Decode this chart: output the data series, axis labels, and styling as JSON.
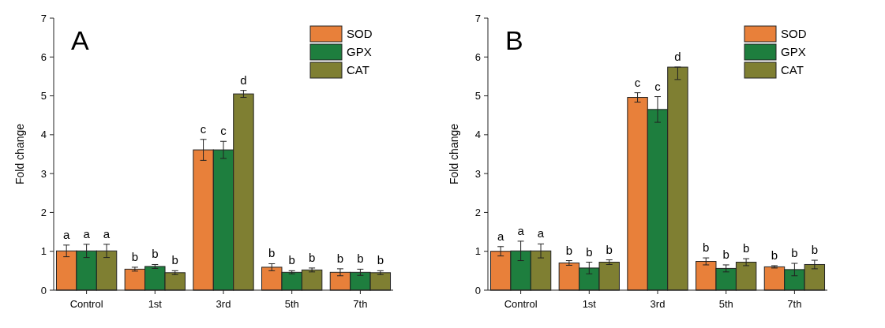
{
  "chart_data": [
    {
      "type": "bar",
      "title": "A",
      "ylabel": "Fold change",
      "categories": [
        "Control",
        "1st",
        "3rd",
        "5th",
        "7th"
      ],
      "ylim": [
        0,
        7
      ],
      "yticks": [
        0,
        1,
        2,
        3,
        4,
        5,
        6,
        7
      ],
      "legend": "top right",
      "series": [
        {
          "name": "SOD",
          "color": "#e8803a",
          "values": [
            1.01,
            0.54,
            3.61,
            0.59,
            0.46
          ],
          "errors": [
            0.15,
            0.05,
            0.27,
            0.09,
            0.09
          ]
        },
        {
          "name": "GPX",
          "color": "#1e7e3e",
          "values": [
            1.01,
            0.61,
            3.61,
            0.46,
            0.46
          ],
          "errors": [
            0.17,
            0.05,
            0.22,
            0.04,
            0.08
          ]
        },
        {
          "name": "CAT",
          "color": "#7f7f32",
          "values": [
            1.01,
            0.45,
            5.05,
            0.52,
            0.45
          ],
          "errors": [
            0.17,
            0.05,
            0.09,
            0.05,
            0.05
          ]
        }
      ],
      "annotations": [
        "a",
        "a",
        "a",
        "b",
        "b",
        "b",
        "c",
        "c",
        "d",
        "b",
        "b",
        "b",
        "b",
        "b",
        "b"
      ]
    },
    {
      "type": "bar",
      "title": "B",
      "ylabel": "Fold change",
      "categories": [
        "Control",
        "1st",
        "3rd",
        "5th",
        "7th"
      ],
      "ylim": [
        0,
        7
      ],
      "yticks": [
        0,
        1,
        2,
        3,
        4,
        5,
        6,
        7
      ],
      "legend": "top right",
      "series": [
        {
          "name": "SOD",
          "color": "#e8803a",
          "values": [
            1.0,
            0.7,
            4.96,
            0.74,
            0.6
          ],
          "errors": [
            0.12,
            0.06,
            0.12,
            0.09,
            0.03
          ]
        },
        {
          "name": "GPX",
          "color": "#1e7e3e",
          "values": [
            1.01,
            0.57,
            4.65,
            0.56,
            0.53
          ],
          "errors": [
            0.25,
            0.15,
            0.33,
            0.09,
            0.16
          ]
        },
        {
          "name": "CAT",
          "color": "#7f7f32",
          "values": [
            1.01,
            0.72,
            5.74,
            0.72,
            0.66
          ],
          "errors": [
            0.18,
            0.06,
            [
              5.42,
              5.74
            ],
            0.09,
            0.11
          ]
        }
      ],
      "annotations": [
        "a",
        "a",
        "a",
        "b",
        "b",
        "b",
        "c",
        "c",
        "d",
        "b",
        "b",
        "b",
        "b",
        "b",
        "b"
      ]
    }
  ]
}
